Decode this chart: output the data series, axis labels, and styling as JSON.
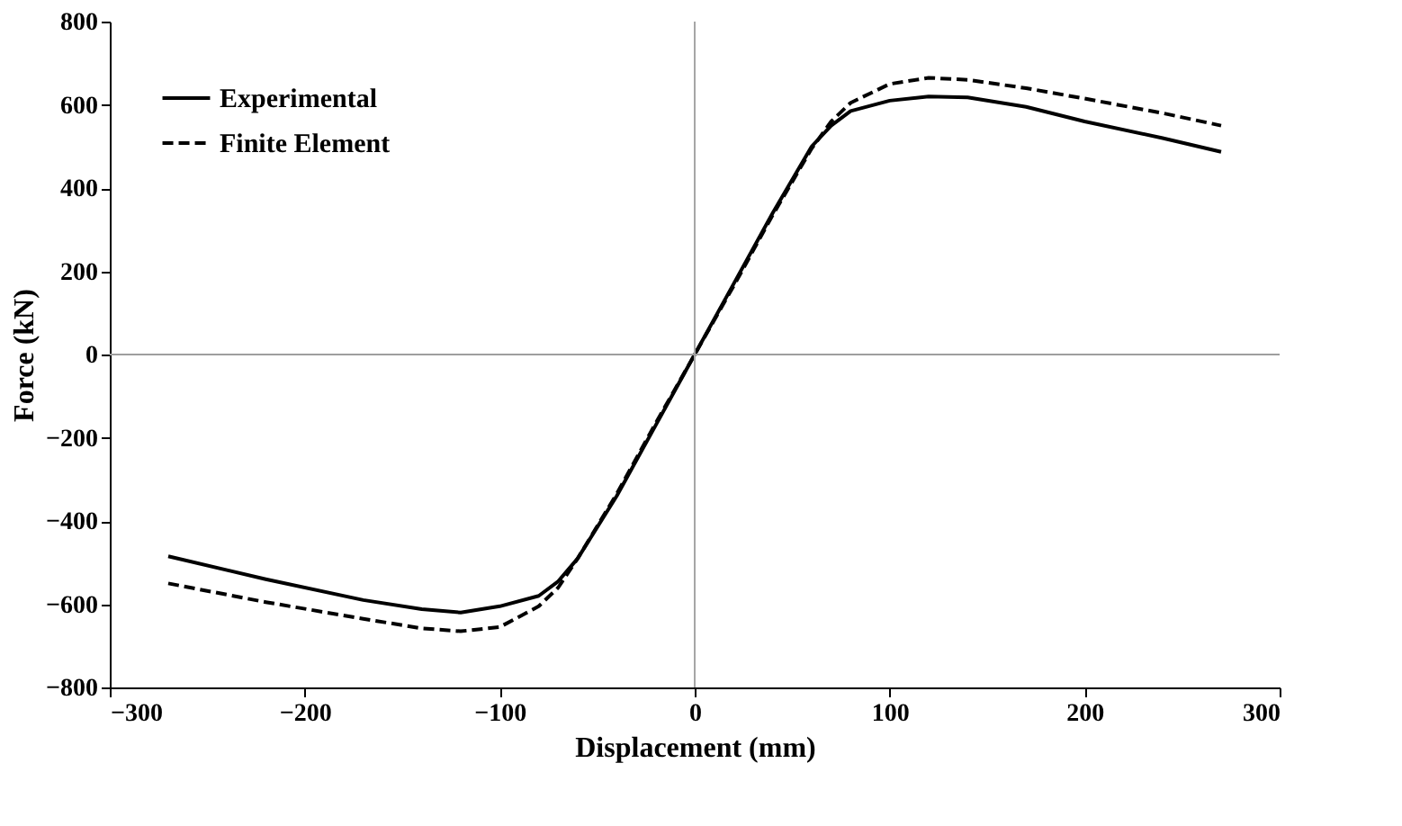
{
  "chart_data": {
    "type": "line",
    "xlabel": "Displacement (mm)",
    "ylabel": "Force (kN)",
    "xlim": [
      -300,
      300
    ],
    "xticks": [
      -300,
      -200,
      -100,
      0,
      100,
      200,
      300
    ],
    "ylim": [
      -800,
      800
    ],
    "yticks": [
      -800,
      -600,
      -400,
      -200,
      0,
      200,
      400,
      600,
      800
    ],
    "grid": false,
    "legend": "top left",
    "marker": "none",
    "ref_lines": [
      {
        "axis": "x",
        "value": 0,
        "color": "#a6a6a6"
      },
      {
        "axis": "y",
        "value": 0,
        "color": "#9e9e9e"
      }
    ],
    "series": [
      {
        "name": "Experimental",
        "color": "#000000",
        "line_style": "solid",
        "x": [
          -270,
          -220,
          -170,
          -140,
          -120,
          -100,
          -80,
          -70,
          -60,
          -40,
          -20,
          0,
          20,
          40,
          60,
          70,
          80,
          100,
          120,
          140,
          170,
          200,
          240,
          270
        ],
        "values": [
          -485,
          -540,
          -590,
          -612,
          -620,
          -605,
          -580,
          -545,
          -490,
          -340,
          -170,
          0,
          170,
          340,
          500,
          550,
          585,
          610,
          620,
          618,
          595,
          560,
          520,
          487
        ]
      },
      {
        "name": "Finite Element",
        "color": "#000000",
        "line_style": "dashed",
        "x": [
          -270,
          -220,
          -170,
          -140,
          -120,
          -100,
          -80,
          -70,
          -60,
          -40,
          -20,
          0,
          20,
          40,
          60,
          70,
          80,
          100,
          120,
          140,
          170,
          200,
          240,
          270
        ],
        "values": [
          -550,
          -595,
          -635,
          -658,
          -665,
          -655,
          -605,
          -560,
          -490,
          -335,
          -165,
          0,
          165,
          335,
          495,
          560,
          605,
          650,
          665,
          660,
          640,
          615,
          580,
          550
        ]
      }
    ]
  }
}
